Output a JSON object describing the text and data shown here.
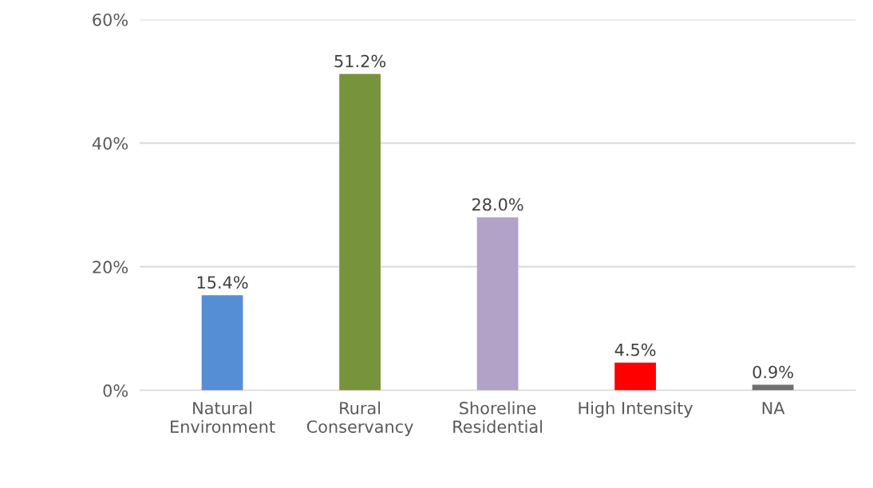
{
  "chart_data": {
    "type": "bar",
    "categories": [
      "Natural\nEnvironment",
      "Rural\nConservancy",
      "Shoreline\nResidential",
      "High Intensity",
      "NA"
    ],
    "values": [
      15.4,
      51.2,
      28.0,
      4.5,
      0.9
    ],
    "colors": [
      "#558ed5",
      "#77933c",
      "#b3a2c7",
      "#ff0000",
      "#6f6f6f"
    ],
    "value_labels": [
      "15.4%",
      "51.2%",
      "28.0%",
      "4.5%",
      "0.9%"
    ],
    "ylim": [
      0,
      60
    ],
    "yticks": [
      {
        "value": 0,
        "label": "0%"
      },
      {
        "value": 20,
        "label": "20%"
      },
      {
        "value": 40,
        "label": "40%"
      },
      {
        "value": 60,
        "label": "60%"
      }
    ],
    "grid": "y"
  }
}
